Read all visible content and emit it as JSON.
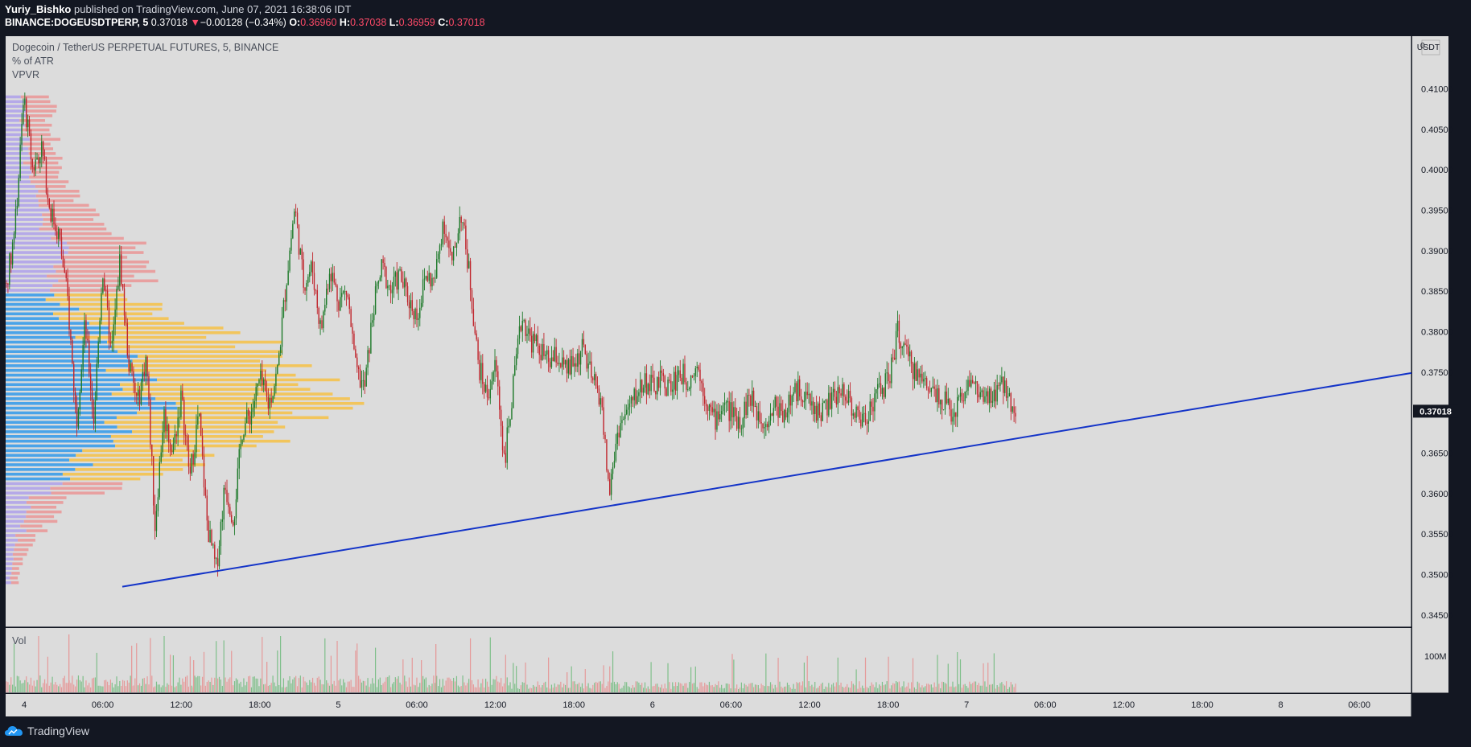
{
  "header": {
    "author": "Yuriy_Bishko",
    "published_text": "published on TradingView.com, June 07, 2021 16:38:06 IDT",
    "symbol_line": "BINANCE:DOGEUSDTPERP, 5",
    "last_price": "0.37018",
    "change_arrow": "▼",
    "change": "−0.00128 (−0.34%)",
    "o_label": "O:",
    "o_value": "0.36960",
    "h_label": "H:",
    "h_value": "0.37038",
    "l_label": "L:",
    "l_value": "0.36959",
    "c_label": "C:",
    "c_value": "0.37018"
  },
  "legend": {
    "title": "Dogecoin / TetherUS PERPETUAL FUTURES, 5, BINANCE",
    "indicator_1": "% of ATR",
    "indicator_2": "VPVR",
    "volume_label": "Vol"
  },
  "footer": {
    "brand": "TradingView"
  },
  "colors": {
    "background": "#131722",
    "plot_bg": "#dcdcdc",
    "up_candle": "#1e7a2a",
    "down_candle": "#c0262d",
    "trendline": "#1434c8",
    "vp_up_value_area": "#4aa3e8",
    "vp_down_value_area": "#f2c55c",
    "vp_up": "#b5a9e8",
    "vp_down": "#e8a0a0",
    "last_price_badge": "#131722"
  },
  "chart_data": {
    "type": "candlestick",
    "symbol": "DOGEUSDTPERP",
    "interval": "5",
    "price_axis_unit": "USDT",
    "price_ticks": [
      "0.41000",
      "0.40500",
      "0.40000",
      "0.39500",
      "0.39000",
      "0.38500",
      "0.38000",
      "0.37500",
      "0.37018",
      "0.36500",
      "0.36000",
      "0.35500",
      "0.35000",
      "0.34500"
    ],
    "last_price": 0.37018,
    "ylim": [
      0.3435,
      0.4165
    ],
    "time_ticks": [
      "4",
      "06:00",
      "12:00",
      "18:00",
      "5",
      "06:00",
      "12:00",
      "18:00",
      "6",
      "06:00",
      "12:00",
      "18:00",
      "7",
      "06:00",
      "12:00",
      "18:00",
      "8",
      "06:00"
    ],
    "price_path": [
      {
        "t": 0,
        "p": 0.386
      },
      {
        "t": 2,
        "p": 0.393
      },
      {
        "t": 4,
        "p": 0.409
      },
      {
        "t": 6,
        "p": 0.4
      },
      {
        "t": 8,
        "p": 0.403
      },
      {
        "t": 10,
        "p": 0.395
      },
      {
        "t": 12,
        "p": 0.392
      },
      {
        "t": 14,
        "p": 0.384
      },
      {
        "t": 16,
        "p": 0.369
      },
      {
        "t": 18,
        "p": 0.381
      },
      {
        "t": 20,
        "p": 0.369
      },
      {
        "t": 22,
        "p": 0.388
      },
      {
        "t": 24,
        "p": 0.377
      },
      {
        "t": 26,
        "p": 0.389
      },
      {
        "t": 28,
        "p": 0.376
      },
      {
        "t": 30,
        "p": 0.371
      },
      {
        "t": 32,
        "p": 0.377
      },
      {
        "t": 34,
        "p": 0.356
      },
      {
        "t": 36,
        "p": 0.37
      },
      {
        "t": 38,
        "p": 0.365
      },
      {
        "t": 40,
        "p": 0.372
      },
      {
        "t": 42,
        "p": 0.362
      },
      {
        "t": 44,
        "p": 0.37
      },
      {
        "t": 46,
        "p": 0.356
      },
      {
        "t": 48,
        "p": 0.3505
      },
      {
        "t": 50,
        "p": 0.361
      },
      {
        "t": 52,
        "p": 0.357
      },
      {
        "t": 54,
        "p": 0.368
      },
      {
        "t": 56,
        "p": 0.37
      },
      {
        "t": 58,
        "p": 0.374
      },
      {
        "t": 60,
        "p": 0.371
      },
      {
        "t": 62,
        "p": 0.375
      },
      {
        "t": 64,
        "p": 0.386
      },
      {
        "t": 66,
        "p": 0.3955
      },
      {
        "t": 68,
        "p": 0.386
      },
      {
        "t": 70,
        "p": 0.388
      },
      {
        "t": 72,
        "p": 0.38
      },
      {
        "t": 74,
        "p": 0.388
      },
      {
        "t": 76,
        "p": 0.384
      },
      {
        "t": 78,
        "p": 0.385
      },
      {
        "t": 80,
        "p": 0.375
      },
      {
        "t": 82,
        "p": 0.373
      },
      {
        "t": 84,
        "p": 0.383
      },
      {
        "t": 86,
        "p": 0.388
      },
      {
        "t": 88,
        "p": 0.385
      },
      {
        "t": 90,
        "p": 0.387
      },
      {
        "t": 92,
        "p": 0.384
      },
      {
        "t": 94,
        "p": 0.382
      },
      {
        "t": 96,
        "p": 0.387
      },
      {
        "t": 98,
        "p": 0.386
      },
      {
        "t": 100,
        "p": 0.394
      },
      {
        "t": 102,
        "p": 0.388
      },
      {
        "t": 104,
        "p": 0.395
      },
      {
        "t": 106,
        "p": 0.387
      },
      {
        "t": 108,
        "p": 0.376
      },
      {
        "t": 110,
        "p": 0.372
      },
      {
        "t": 112,
        "p": 0.376
      },
      {
        "t": 114,
        "p": 0.364
      },
      {
        "t": 116,
        "p": 0.373
      },
      {
        "t": 118,
        "p": 0.382
      },
      {
        "t": 120,
        "p": 0.379
      },
      {
        "t": 122,
        "p": 0.378
      },
      {
        "t": 124,
        "p": 0.376
      },
      {
        "t": 126,
        "p": 0.377
      },
      {
        "t": 128,
        "p": 0.375
      },
      {
        "t": 130,
        "p": 0.376
      },
      {
        "t": 132,
        "p": 0.378
      },
      {
        "t": 134,
        "p": 0.374
      },
      {
        "t": 136,
        "p": 0.372
      },
      {
        "t": 138,
        "p": 0.36
      },
      {
        "t": 140,
        "p": 0.368
      },
      {
        "t": 142,
        "p": 0.37
      },
      {
        "t": 144,
        "p": 0.372
      },
      {
        "t": 146,
        "p": 0.374
      },
      {
        "t": 148,
        "p": 0.373
      },
      {
        "t": 150,
        "p": 0.374
      },
      {
        "t": 152,
        "p": 0.373
      },
      {
        "t": 154,
        "p": 0.375
      },
      {
        "t": 156,
        "p": 0.374
      },
      {
        "t": 158,
        "p": 0.376
      },
      {
        "t": 160,
        "p": 0.372
      },
      {
        "t": 162,
        "p": 0.369
      },
      {
        "t": 164,
        "p": 0.371
      },
      {
        "t": 166,
        "p": 0.37
      },
      {
        "t": 168,
        "p": 0.369
      },
      {
        "t": 170,
        "p": 0.372
      },
      {
        "t": 172,
        "p": 0.37
      },
      {
        "t": 174,
        "p": 0.369
      },
      {
        "t": 176,
        "p": 0.371
      },
      {
        "t": 178,
        "p": 0.37
      },
      {
        "t": 180,
        "p": 0.372
      },
      {
        "t": 182,
        "p": 0.373
      },
      {
        "t": 184,
        "p": 0.371
      },
      {
        "t": 186,
        "p": 0.37
      },
      {
        "t": 188,
        "p": 0.371
      },
      {
        "t": 190,
        "p": 0.372
      },
      {
        "t": 192,
        "p": 0.373
      },
      {
        "t": 194,
        "p": 0.37
      },
      {
        "t": 196,
        "p": 0.369
      },
      {
        "t": 198,
        "p": 0.371
      },
      {
        "t": 200,
        "p": 0.373
      },
      {
        "t": 202,
        "p": 0.374
      },
      {
        "t": 204,
        "p": 0.38
      },
      {
        "t": 206,
        "p": 0.377
      },
      {
        "t": 208,
        "p": 0.375
      },
      {
        "t": 210,
        "p": 0.374
      },
      {
        "t": 212,
        "p": 0.373
      },
      {
        "t": 214,
        "p": 0.372
      },
      {
        "t": 216,
        "p": 0.37
      },
      {
        "t": 218,
        "p": 0.371
      },
      {
        "t": 220,
        "p": 0.374
      },
      {
        "t": 222,
        "p": 0.373
      },
      {
        "t": 224,
        "p": 0.371
      },
      {
        "t": 226,
        "p": 0.372
      },
      {
        "t": 228,
        "p": 0.3735
      },
      {
        "t": 230,
        "p": 0.3715
      },
      {
        "t": 231,
        "p": 0.3702
      }
    ],
    "trendline": {
      "from": {
        "t": 28,
        "p": 0.3485
      },
      "to": {
        "t": 280,
        "p": 0.3749
      }
    },
    "volume_profile_note": "VPVR histogram on left, value area highlighted",
    "volume_axis_tick": "100M"
  }
}
